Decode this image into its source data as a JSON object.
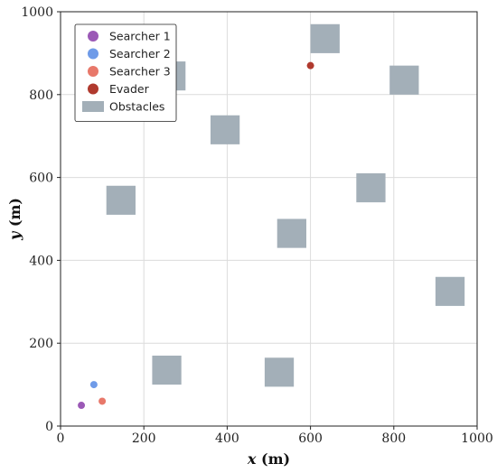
{
  "chart_data": {
    "type": "scatter",
    "xlabel": {
      "var": "x",
      "unit": " (m)"
    },
    "ylabel": {
      "var": "y",
      "unit": " (m)"
    },
    "xlim": [
      0,
      1000
    ],
    "ylim": [
      0,
      1000
    ],
    "xticks": [
      0,
      200,
      400,
      600,
      800,
      1000
    ],
    "yticks": [
      0,
      200,
      400,
      600,
      800,
      1000
    ],
    "grid": true,
    "legend_position": "top-left",
    "series": [
      {
        "name": "Searcher 1",
        "color": "#9b59b6",
        "points": [
          {
            "x": 50,
            "y": 50
          }
        ]
      },
      {
        "name": "Searcher 2",
        "color": "#6f9be8",
        "points": [
          {
            "x": 80,
            "y": 100
          }
        ]
      },
      {
        "name": "Searcher 3",
        "color": "#e8786a",
        "points": [
          {
            "x": 100,
            "y": 60
          }
        ]
      },
      {
        "name": "Evader",
        "color": "#b03a2e",
        "points": [
          {
            "x": 600,
            "y": 870
          }
        ]
      }
    ],
    "obstacles": {
      "name": "Obstacles",
      "color": "#a3afb8",
      "size": 70,
      "centers": [
        {
          "x": 635,
          "y": 935
        },
        {
          "x": 265,
          "y": 845
        },
        {
          "x": 825,
          "y": 835
        },
        {
          "x": 395,
          "y": 715
        },
        {
          "x": 145,
          "y": 545
        },
        {
          "x": 745,
          "y": 575
        },
        {
          "x": 555,
          "y": 465
        },
        {
          "x": 935,
          "y": 325
        },
        {
          "x": 255,
          "y": 135
        },
        {
          "x": 525,
          "y": 130
        }
      ]
    }
  }
}
